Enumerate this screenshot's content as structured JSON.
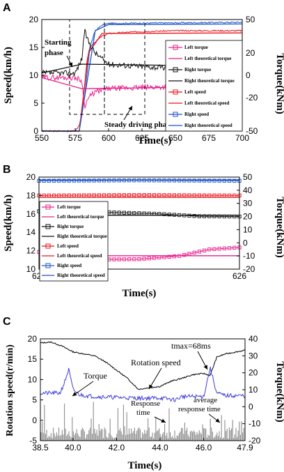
{
  "figure": {
    "panels": [
      "A",
      "B",
      "C"
    ]
  },
  "chart_data": [
    {
      "panel": "A",
      "type": "line",
      "xlabel": "Time(s)",
      "ylabel": "Speed(km/h)",
      "y2label": "Torque(kNm)",
      "xlim": [
        550,
        700
      ],
      "ylim": [
        0,
        20
      ],
      "y2lim": [
        -50,
        50
      ],
      "x_ticks": [
        "550",
        "575",
        "600",
        "625",
        "650",
        "675",
        "700"
      ],
      "y_ticks": [
        "0",
        "5",
        "10",
        "15",
        "20"
      ],
      "y2_ticks": [
        "-50",
        "-20",
        "0",
        "20",
        "50"
      ],
      "legend": [
        "Left torque",
        "Left theoretical torque",
        "Right torque",
        "Right theoretical torque",
        "Left speed",
        "Left theoretical speed",
        "Right speed",
        "Right theoretical speed"
      ],
      "legend_position": "right",
      "annotations": [
        "Starting phase",
        "Steady driving phase"
      ],
      "series": [
        {
          "name": "Left speed",
          "color": "#e8141b",
          "x": [
            550,
            575,
            578,
            580,
            582,
            584,
            586,
            590,
            595,
            600,
            620,
            650,
            700
          ],
          "y": [
            0,
            0,
            1,
            3,
            8,
            13,
            15,
            16,
            17,
            17.5,
            17.8,
            18.0,
            18.0
          ]
        },
        {
          "name": "Left theoretical speed",
          "color": "#e8141b",
          "x": [
            550,
            578,
            585,
            595,
            700
          ],
          "y": [
            0,
            0,
            14,
            17.5,
            17.6
          ]
        },
        {
          "name": "Right speed",
          "color": "#1f55c8",
          "x": [
            550,
            578,
            582,
            586,
            590,
            595,
            600,
            650,
            700
          ],
          "y": [
            0,
            0,
            6,
            15,
            18,
            19,
            19.3,
            19.4,
            19.5
          ]
        },
        {
          "name": "Right theoretical speed",
          "color": "#1f55c8",
          "x": [
            550,
            578,
            590,
            600,
            700
          ],
          "y": [
            0,
            0,
            18,
            19.1,
            19.2
          ]
        },
        {
          "name": "Left torque",
          "color": "#e91e8c",
          "x": [
            550,
            575,
            580,
            582,
            585,
            590,
            600,
            650,
            700
          ],
          "y": [
            -2,
            -2,
            -5,
            -28,
            -20,
            -15,
            -12,
            -10,
            -9
          ]
        },
        {
          "name": "Left theoretical torque",
          "color": "#e91e8c",
          "x": [
            550,
            580,
            700
          ],
          "y": [
            -2,
            -12,
            -10
          ]
        },
        {
          "name": "Right torque",
          "color": "#111111",
          "x": [
            550,
            575,
            580,
            582,
            585,
            590,
            600,
            650,
            700
          ],
          "y": [
            2,
            2,
            15,
            40,
            30,
            20,
            10,
            6,
            5
          ]
        },
        {
          "name": "Right theoretical torque",
          "color": "#111111",
          "x": [
            550,
            580,
            700
          ],
          "y": [
            2,
            10,
            8
          ]
        }
      ]
    },
    {
      "panel": "B",
      "type": "line",
      "xlabel": "Time(s)",
      "ylabel": "Speed(km/h)",
      "y2label": "Torque(kNm)",
      "xlim": [
        625,
        626
      ],
      "ylim": [
        10,
        20
      ],
      "y2lim": [
        -20,
        50
      ],
      "x_ticks": [
        "625",
        "626"
      ],
      "y_ticks": [
        "10",
        "12",
        "14",
        "16",
        "18",
        "20"
      ],
      "y2_ticks": [
        "-20",
        "-10",
        "0",
        "10",
        "20",
        "30",
        "40",
        "50"
      ],
      "legend": [
        "Left torque",
        "Left theoretical torque",
        "Right torque",
        "Right theoretical torque",
        "Left speed",
        "Left theoretical speed",
        "Right speed",
        "Right theoretical speed"
      ],
      "legend_position": "left",
      "series": [
        {
          "name": "Left torque",
          "color": "#e91e8c",
          "x": [
            625.0,
            625.35,
            625.5,
            625.7,
            625.85,
            626.0
          ],
          "y": [
            -7,
            -12.6,
            -12.4,
            -10,
            -5,
            -3.5
          ]
        },
        {
          "name": "Left theoretical torque",
          "color": "#e91e8c",
          "x": [
            625.0,
            626.0
          ],
          "y": [
            -9.8,
            -9.8
          ]
        },
        {
          "name": "Right torque",
          "color": "#111111",
          "x": [
            625.0,
            625.35,
            625.6,
            625.8,
            626.0
          ],
          "y": [
            24,
            23.2,
            22.0,
            20.2,
            20.0
          ]
        },
        {
          "name": "Right theoretical torque",
          "color": "#111111",
          "x": [
            625.0,
            626.0
          ],
          "y": [
            21.0,
            21.0
          ]
        },
        {
          "name": "Left speed",
          "color": "#e8141b",
          "x": [
            625.0,
            625.5,
            626.0
          ],
          "y": [
            18.0,
            18.05,
            18.0
          ]
        },
        {
          "name": "Left theoretical speed",
          "color": "#e8141b",
          "x": [
            625.0,
            626.0
          ],
          "y": [
            17.8,
            17.8
          ]
        },
        {
          "name": "Right speed",
          "color": "#1f55c8",
          "x": [
            625.0,
            625.5,
            626.0
          ],
          "y": [
            19.6,
            19.65,
            19.6
          ]
        },
        {
          "name": "Right theoretical speed",
          "color": "#1f55c8",
          "x": [
            625.0,
            626.0
          ],
          "y": [
            19.7,
            19.7
          ]
        }
      ]
    },
    {
      "panel": "C",
      "type": "line",
      "xlabel": "Time(s)",
      "ylabel": "Rotation speed(r/min)",
      "y2label": "Torque(kNm)",
      "xlim": [
        38.5,
        47.9
      ],
      "ylim": [
        -5,
        20
      ],
      "y2lim": [
        -20,
        40
      ],
      "x_ticks": [
        "38.5",
        "40.0",
        "42.0",
        "44.0",
        "46.0",
        "47.9"
      ],
      "y_ticks": [
        "-5",
        "0",
        "5",
        "10",
        "15",
        "20"
      ],
      "y2_ticks": [
        "-20",
        "-10",
        "0",
        "10",
        "20",
        "30",
        "40"
      ],
      "annotations": [
        "Rotation speed",
        "Torque",
        "Response time",
        "average response time",
        "tmax=68ms"
      ],
      "series": [
        {
          "name": "Rotation speed",
          "color": "#000000",
          "x": [
            38.5,
            39.0,
            39.5,
            40.0,
            40.5,
            41.0,
            41.5,
            42.0,
            42.5,
            43.0,
            43.5,
            44.0,
            44.5,
            45.0,
            45.5,
            46.0,
            46.3,
            46.6,
            47.0,
            47.9
          ],
          "y": [
            19,
            19.2,
            18.2,
            16.8,
            16.3,
            15.8,
            14.3,
            12.3,
            10.3,
            7.6,
            8.0,
            8.3,
            9.6,
            10.3,
            11.2,
            11.5,
            11.0,
            15.5,
            16.3,
            17.2
          ]
        },
        {
          "name": "Torque",
          "color": "#3b3bdb",
          "x": [
            38.5,
            39.4,
            39.6,
            39.8,
            40.0,
            40.3,
            41.0,
            42.0,
            43.0,
            44.0,
            44.7,
            45.0,
            46.0,
            46.3,
            46.6,
            47.0,
            47.9
          ],
          "y": [
            8,
            8,
            14,
            22,
            10,
            7,
            6,
            5.5,
            5,
            5.2,
            4,
            6,
            6,
            23,
            8,
            6.5,
            6.5
          ]
        },
        {
          "name": "Response time",
          "color": "#9a9a9a",
          "x": [
            38.5,
            47.9
          ],
          "y": [
            -14,
            -14
          ]
        }
      ]
    }
  ]
}
